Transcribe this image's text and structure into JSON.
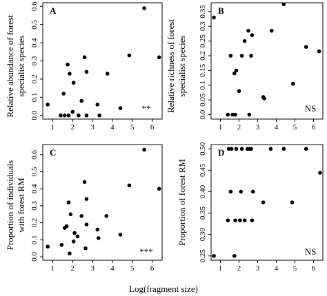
{
  "figure": {
    "xlabel": "Log(fragment size)"
  },
  "chart_data": [
    {
      "type": "scatter",
      "letter": "A",
      "ylabel_lines": [
        "Relative abundance of forest",
        "specialist species"
      ],
      "significance": "**",
      "xlim": [
        0.5,
        6.5
      ],
      "ylim": [
        -0.02,
        0.62
      ],
      "x_ticks": [
        1,
        2,
        3,
        4,
        5,
        6
      ],
      "y_ticks": [
        0.0,
        0.1,
        0.2,
        0.3,
        0.4,
        0.5,
        0.6
      ],
      "y_tick_labels": [
        "0.0",
        "0.1",
        "0.2",
        "0.3",
        "0.4",
        "0.5",
        "0.6"
      ],
      "points": [
        {
          "x": 0.75,
          "y": 0.06
        },
        {
          "x": 1.4,
          "y": 0.0
        },
        {
          "x": 1.55,
          "y": 0.12
        },
        {
          "x": 1.6,
          "y": 0.0
        },
        {
          "x": 1.75,
          "y": 0.28
        },
        {
          "x": 1.8,
          "y": 0.0
        },
        {
          "x": 1.85,
          "y": 0.23
        },
        {
          "x": 2.0,
          "y": 0.02
        },
        {
          "x": 2.05,
          "y": 0.18
        },
        {
          "x": 2.3,
          "y": 0.0
        },
        {
          "x": 2.45,
          "y": 0.08
        },
        {
          "x": 2.6,
          "y": 0.32
        },
        {
          "x": 2.7,
          "y": 0.24
        },
        {
          "x": 2.7,
          "y": 0.0
        },
        {
          "x": 3.25,
          "y": 0.06
        },
        {
          "x": 3.35,
          "y": 0.0
        },
        {
          "x": 3.75,
          "y": 0.23
        },
        {
          "x": 4.4,
          "y": 0.04
        },
        {
          "x": 4.85,
          "y": 0.33
        },
        {
          "x": 5.6,
          "y": 0.59
        },
        {
          "x": 6.35,
          "y": 0.32
        }
      ]
    },
    {
      "type": "scatter",
      "letter": "B",
      "ylabel_lines": [
        "Relative richness of forest",
        "specialist species"
      ],
      "significance": "NS",
      "xlim": [
        0.5,
        6.5
      ],
      "ylim": [
        -0.015,
        0.38
      ],
      "x_ticks": [
        1,
        2,
        3,
        4,
        5,
        6
      ],
      "y_ticks": [
        0.0,
        0.05,
        0.1,
        0.15,
        0.2,
        0.25,
        0.3,
        0.35
      ],
      "y_tick_labels": [
        "0.0",
        "0.05",
        "0.1",
        "0.15",
        "0.2",
        "0.25",
        "0.3",
        "0.35"
      ],
      "points": [
        {
          "x": 0.65,
          "y": 0.33
        },
        {
          "x": 1.4,
          "y": 0.0
        },
        {
          "x": 1.55,
          "y": 0.2
        },
        {
          "x": 1.65,
          "y": 0.0
        },
        {
          "x": 1.75,
          "y": 0.14
        },
        {
          "x": 1.85,
          "y": 0.15
        },
        {
          "x": 1.8,
          "y": 0.0
        },
        {
          "x": 2.0,
          "y": 0.08
        },
        {
          "x": 2.15,
          "y": 0.2
        },
        {
          "x": 2.3,
          "y": 0.25
        },
        {
          "x": 2.5,
          "y": 0.285
        },
        {
          "x": 2.55,
          "y": 0.0
        },
        {
          "x": 2.65,
          "y": 0.2
        },
        {
          "x": 2.7,
          "y": 0.27
        },
        {
          "x": 3.3,
          "y": 0.06
        },
        {
          "x": 3.35,
          "y": 0.055
        },
        {
          "x": 3.75,
          "y": 0.285
        },
        {
          "x": 4.4,
          "y": 0.375
        },
        {
          "x": 4.9,
          "y": 0.105
        },
        {
          "x": 5.6,
          "y": 0.23
        },
        {
          "x": 6.3,
          "y": 0.215
        }
      ]
    },
    {
      "type": "scatter",
      "letter": "C",
      "ylabel_lines": [
        "Proportion of individuals",
        "with forest RM"
      ],
      "significance": "***",
      "xlim": [
        0.5,
        6.5
      ],
      "ylim": [
        -0.02,
        0.66
      ],
      "x_ticks": [
        1,
        2,
        3,
        4,
        5,
        6
      ],
      "y_ticks": [
        0.0,
        0.1,
        0.2,
        0.3,
        0.4,
        0.5,
        0.6
      ],
      "y_tick_labels": [
        "0.0",
        "0.1",
        "0.2",
        "0.3",
        "0.4",
        "0.5",
        "0.6"
      ],
      "points": [
        {
          "x": 0.75,
          "y": 0.06
        },
        {
          "x": 1.45,
          "y": 0.07
        },
        {
          "x": 1.6,
          "y": 0.17
        },
        {
          "x": 1.7,
          "y": 0.18
        },
        {
          "x": 1.8,
          "y": 0.32
        },
        {
          "x": 1.85,
          "y": 0.02
        },
        {
          "x": 1.9,
          "y": 0.25
        },
        {
          "x": 2.05,
          "y": 0.09
        },
        {
          "x": 2.1,
          "y": 0.14
        },
        {
          "x": 2.25,
          "y": 0.12
        },
        {
          "x": 2.45,
          "y": 0.24
        },
        {
          "x": 2.6,
          "y": 0.44
        },
        {
          "x": 2.7,
          "y": 0.34
        },
        {
          "x": 2.65,
          "y": 0.05
        },
        {
          "x": 2.7,
          "y": 0.19
        },
        {
          "x": 3.25,
          "y": 0.16
        },
        {
          "x": 3.3,
          "y": 0.11
        },
        {
          "x": 3.7,
          "y": 0.24
        },
        {
          "x": 4.4,
          "y": 0.13
        },
        {
          "x": 4.85,
          "y": 0.42
        },
        {
          "x": 5.6,
          "y": 0.63
        },
        {
          "x": 6.35,
          "y": 0.4
        }
      ]
    },
    {
      "type": "scatter",
      "letter": "D",
      "ylabel_lines": [
        "Proportion of forest RM"
      ],
      "significance": "NS",
      "xlim": [
        0.5,
        6.5
      ],
      "ylim": [
        0.24,
        0.51
      ],
      "x_ticks": [
        1,
        2,
        3,
        4,
        5,
        6
      ],
      "y_ticks": [
        0.25,
        0.3,
        0.35,
        0.4,
        0.45,
        0.5
      ],
      "y_tick_labels": [
        "0.25",
        "0.30",
        "0.35",
        "0.40",
        "0.45",
        "0.50"
      ],
      "points": [
        {
          "x": 0.65,
          "y": 0.25
        },
        {
          "x": 1.4,
          "y": 0.333
        },
        {
          "x": 1.45,
          "y": 0.5
        },
        {
          "x": 1.55,
          "y": 0.4
        },
        {
          "x": 1.6,
          "y": 0.5
        },
        {
          "x": 1.75,
          "y": 0.25
        },
        {
          "x": 1.8,
          "y": 0.333
        },
        {
          "x": 1.85,
          "y": 0.5
        },
        {
          "x": 2.05,
          "y": 0.333
        },
        {
          "x": 2.1,
          "y": 0.4
        },
        {
          "x": 2.15,
          "y": 0.5
        },
        {
          "x": 2.3,
          "y": 0.333
        },
        {
          "x": 2.45,
          "y": 0.5
        },
        {
          "x": 2.55,
          "y": 0.5
        },
        {
          "x": 2.65,
          "y": 0.5
        },
        {
          "x": 2.7,
          "y": 0.333
        },
        {
          "x": 2.75,
          "y": 0.4
        },
        {
          "x": 3.3,
          "y": 0.375
        },
        {
          "x": 3.7,
          "y": 0.5
        },
        {
          "x": 4.4,
          "y": 0.5
        },
        {
          "x": 4.85,
          "y": 0.375
        },
        {
          "x": 5.6,
          "y": 0.5
        },
        {
          "x": 6.35,
          "y": 0.444
        }
      ]
    }
  ]
}
